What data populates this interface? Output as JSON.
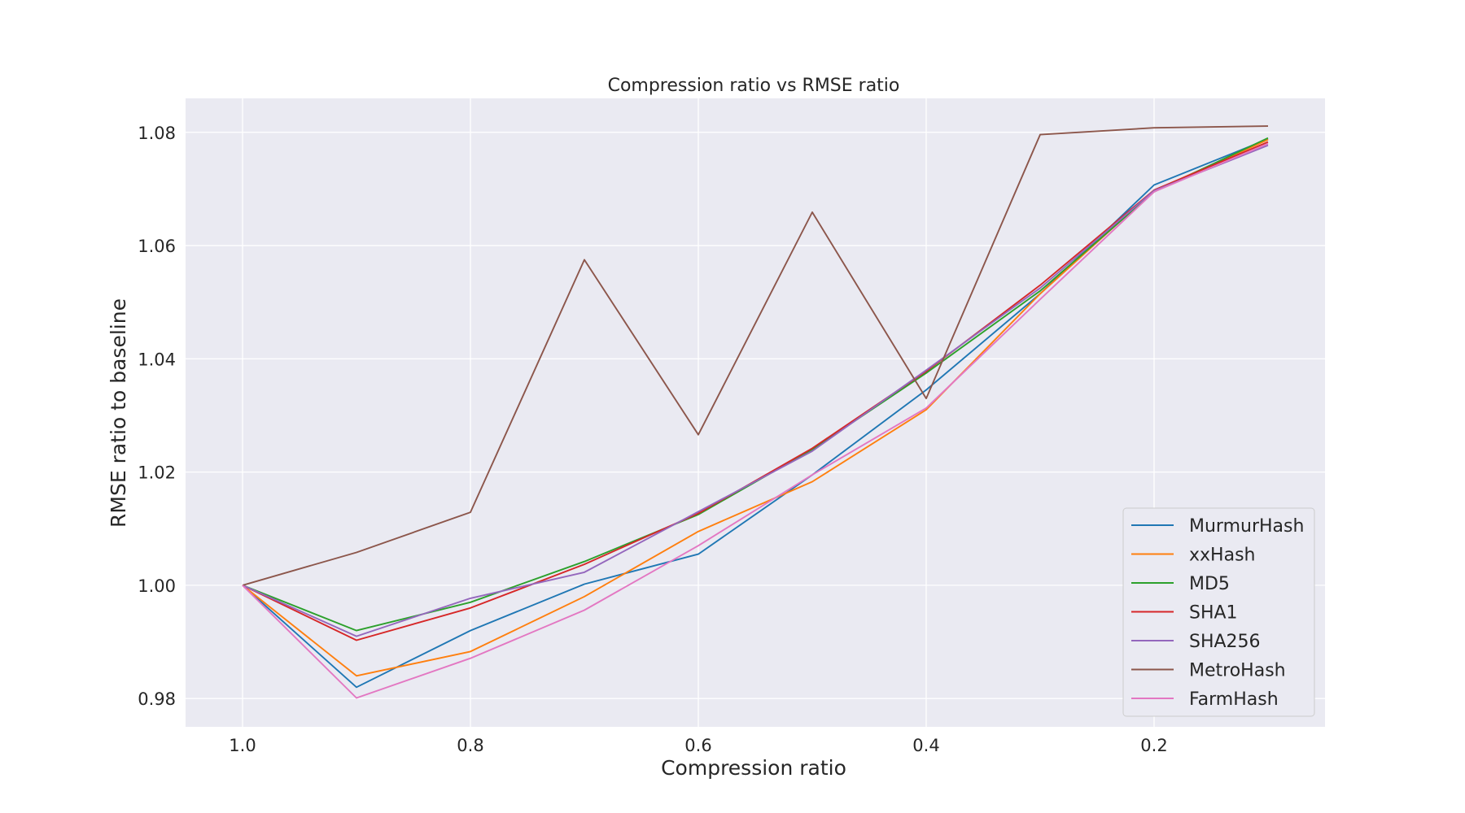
{
  "chart_data": {
    "type": "line",
    "title": "Compression ratio vs RMSE ratio",
    "xlabel": "Compression ratio",
    "ylabel": "RMSE ratio to baseline",
    "x": [
      1.0,
      0.9,
      0.8,
      0.7,
      0.6,
      0.5,
      0.4,
      0.3,
      0.2,
      0.1
    ],
    "xlim": [
      1.05,
      0.05
    ],
    "ylim": [
      0.975,
      1.086
    ],
    "x_ticks": [
      1.0,
      0.8,
      0.6,
      0.4,
      0.2
    ],
    "x_tick_labels": [
      "1.0",
      "0.8",
      "0.6",
      "0.4",
      "0.2"
    ],
    "y_ticks": [
      0.98,
      1.0,
      1.02,
      1.04,
      1.06,
      1.08
    ],
    "y_tick_labels": [
      "0.98",
      "1.00",
      "1.02",
      "1.04",
      "1.06",
      "1.08"
    ],
    "grid": true,
    "legend_position": "lower-right",
    "series": [
      {
        "name": "MurmurHash",
        "color": "#1f77b4",
        "values": [
          1.0,
          0.982,
          0.992,
          1.0002,
          1.0055,
          1.0195,
          1.0345,
          1.0515,
          1.0707,
          1.0788
        ]
      },
      {
        "name": "xxHash",
        "color": "#ff7f0e",
        "values": [
          1.0,
          0.984,
          0.9883,
          0.998,
          1.0095,
          1.0183,
          1.031,
          1.0515,
          1.0697,
          1.0787
        ]
      },
      {
        "name": "MD5",
        "color": "#2ca02c",
        "values": [
          1.0,
          0.992,
          0.997,
          1.0042,
          1.0125,
          1.024,
          1.0375,
          1.052,
          1.0695,
          1.079
        ]
      },
      {
        "name": "SHA1",
        "color": "#d62728",
        "values": [
          1.0,
          0.9903,
          0.996,
          1.0037,
          1.0127,
          1.0242,
          1.0378,
          1.053,
          1.0698,
          1.0783
        ]
      },
      {
        "name": "SHA256",
        "color": "#9467bd",
        "values": [
          1.0,
          0.991,
          0.9977,
          1.0023,
          1.013,
          1.0237,
          1.038,
          1.0525,
          1.0697,
          1.0777
        ]
      },
      {
        "name": "MetroHash",
        "color": "#8c564b",
        "values": [
          1.0,
          1.0058,
          1.0129,
          1.0575,
          1.0266,
          1.0659,
          1.033,
          1.0796,
          1.0808,
          1.0811
        ]
      },
      {
        "name": "FarmHash",
        "color": "#e377c2",
        "values": [
          1.0,
          0.9801,
          0.9871,
          0.9956,
          1.007,
          1.0195,
          1.0313,
          1.0505,
          1.0695,
          1.078
        ]
      }
    ]
  }
}
